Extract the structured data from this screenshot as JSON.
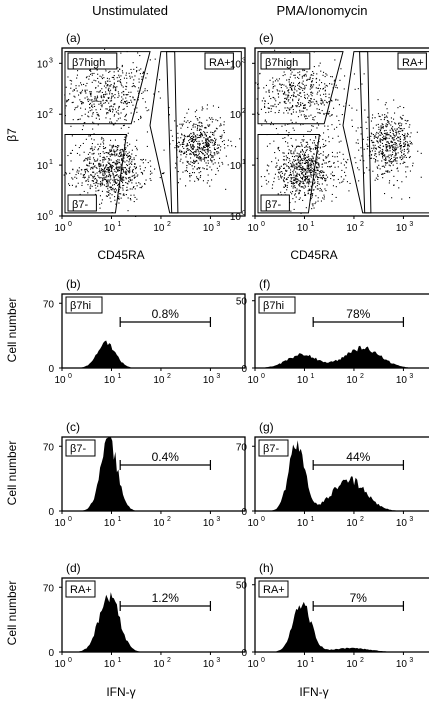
{
  "columns": [
    "Unstimulated",
    "PMA/Ionomycin"
  ],
  "row_titles": [
    "Cell number",
    "Cell number",
    "Cell number"
  ],
  "axis_labels": {
    "dot_x": "CD45RA",
    "dot_y": "β7",
    "hist_x": "IFN-γ",
    "hist_y": "Cell number"
  },
  "chart_data": [
    {
      "type": "scatter",
      "panel": "(a)",
      "column": "Unstimulated",
      "xlabel": "CD45RA",
      "ylabel": "β7",
      "xlim": [
        1,
        5000
      ],
      "ylim": [
        1,
        2000
      ],
      "xscale": "log",
      "yscale": "log",
      "xticks": [
        "10",
        "10",
        "10",
        "10"
      ],
      "xtick_exp": [
        "0",
        "1",
        "2",
        "3"
      ],
      "yticks": [
        "10",
        "10",
        "10",
        "10"
      ],
      "ytick_exp": [
        "0",
        "1",
        "2",
        "3"
      ],
      "gates": [
        "β7high",
        "RA+",
        "β7-"
      ],
      "populations": [
        {
          "gate": "β7high",
          "center": [
            8,
            250
          ],
          "spread": [
            0.45,
            0.35
          ],
          "weight": 0.28
        },
        {
          "gate": "β7-",
          "center": [
            10,
            8
          ],
          "spread": [
            0.35,
            0.3
          ],
          "weight": 0.42
        },
        {
          "gate": "RA+",
          "center": [
            600,
            25
          ],
          "spread": [
            0.25,
            0.3
          ],
          "weight": 0.3
        }
      ]
    },
    {
      "type": "scatter",
      "panel": "(e)",
      "column": "PMA/Ionomycin",
      "xlabel": "CD45RA",
      "ylabel": "",
      "xlim": [
        1,
        5000
      ],
      "ylim": [
        1,
        2000
      ],
      "xscale": "log",
      "yscale": "log",
      "xticks": [
        "10",
        "10",
        "10",
        "10"
      ],
      "xtick_exp": [
        "0",
        "1",
        "2",
        "3"
      ],
      "yticks": [
        "10",
        "10",
        "10",
        "10"
      ],
      "ytick_exp": [
        "0",
        "1",
        "2",
        "3"
      ],
      "gates": [
        "β7high",
        "RA+",
        "β7-"
      ],
      "populations": [
        {
          "gate": "β7high",
          "center": [
            8,
            250
          ],
          "spread": [
            0.45,
            0.35
          ],
          "weight": 0.28
        },
        {
          "gate": "β7-",
          "center": [
            10,
            8
          ],
          "spread": [
            0.35,
            0.3
          ],
          "weight": 0.42
        },
        {
          "gate": "RA+",
          "center": [
            500,
            25
          ],
          "spread": [
            0.25,
            0.3
          ],
          "weight": 0.3
        }
      ]
    },
    {
      "type": "area",
      "panel": "(b)",
      "column": "Unstimulated",
      "gate": "β7hi",
      "xlabel": "",
      "ylabel": "Cell number",
      "xlim": [
        1,
        5000
      ],
      "ylim": [
        0,
        80
      ],
      "ytick_values": [
        0,
        70
      ],
      "marker_range": [
        15,
        1000
      ],
      "percent": "0.8%",
      "peaks": [
        {
          "center": 8,
          "width": 0.18,
          "height": 28
        }
      ]
    },
    {
      "type": "area",
      "panel": "(c)",
      "column": "Unstimulated",
      "gate": "β7-",
      "xlabel": "",
      "ylabel": "Cell number",
      "xlim": [
        1,
        5000
      ],
      "ylim": [
        0,
        80
      ],
      "ytick_values": [
        0,
        70
      ],
      "marker_range": [
        15,
        1000
      ],
      "percent": "0.4%",
      "peaks": [
        {
          "center": 9,
          "width": 0.17,
          "height": 74
        }
      ]
    },
    {
      "type": "area",
      "panel": "(d)",
      "column": "Unstimulated",
      "gate": "RA+",
      "xlabel": "IFN-γ",
      "ylabel": "Cell number",
      "xlim": [
        1,
        5000
      ],
      "ylim": [
        0,
        80
      ],
      "ytick_values": [
        0,
        70
      ],
      "marker_range": [
        15,
        1000
      ],
      "percent": "1.2%",
      "peaks": [
        {
          "center": 9,
          "width": 0.2,
          "height": 62
        }
      ]
    },
    {
      "type": "area",
      "panel": "(f)",
      "column": "PMA/Ionomycin",
      "gate": "β7hi",
      "xlabel": "",
      "ylabel": "",
      "xlim": [
        1,
        5000
      ],
      "ylim": [
        0,
        55
      ],
      "ytick_values": [
        0,
        50
      ],
      "marker_range": [
        15,
        1000
      ],
      "percent": "78%",
      "peaks": [
        {
          "center": 9,
          "width": 0.3,
          "height": 10
        },
        {
          "center": 150,
          "width": 0.35,
          "height": 15
        }
      ]
    },
    {
      "type": "area",
      "panel": "(g)",
      "column": "PMA/Ionomycin",
      "gate": "β7-",
      "xlabel": "",
      "ylabel": "",
      "xlim": [
        1,
        5000
      ],
      "ylim": [
        0,
        80
      ],
      "ytick_values": [
        0,
        70
      ],
      "marker_range": [
        15,
        1000
      ],
      "percent": "44%",
      "peaks": [
        {
          "center": 7,
          "width": 0.16,
          "height": 72
        },
        {
          "center": 80,
          "width": 0.33,
          "height": 34
        }
      ]
    },
    {
      "type": "area",
      "panel": "(h)",
      "column": "PMA/Ionomycin",
      "gate": "RA+",
      "xlabel": "IFN-γ",
      "ylabel": "",
      "xlim": [
        1,
        5000
      ],
      "ylim": [
        0,
        55
      ],
      "ytick_values": [
        0,
        50
      ],
      "marker_range": [
        15,
        1000
      ],
      "percent": "7%",
      "peaks": [
        {
          "center": 9,
          "width": 0.18,
          "height": 36
        },
        {
          "center": 90,
          "width": 0.35,
          "height": 3
        }
      ]
    }
  ]
}
